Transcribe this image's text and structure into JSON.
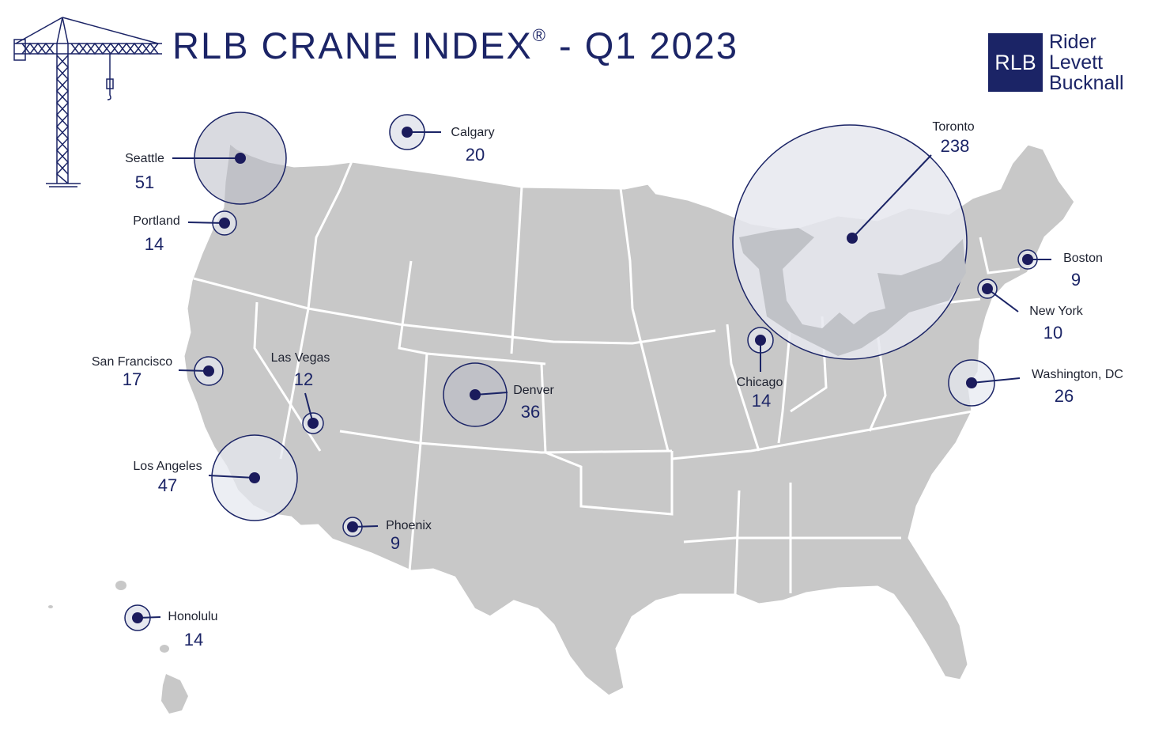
{
  "title": {
    "main": "RLB CRANE INDEX",
    "registered": "®",
    "suffix": " - Q1 2023"
  },
  "logo": {
    "initials": "RLB",
    "line1": "Rider",
    "line2": "Levett",
    "line3": "Bucknall"
  },
  "colors": {
    "navy": "#1b2466",
    "land": "#c8c8c8",
    "bubble_fill": "#e6e8ef",
    "border": "#ffffff"
  },
  "cities": [
    {
      "id": "seattle",
      "name": "Seattle",
      "count": "51"
    },
    {
      "id": "portland",
      "name": "Portland",
      "count": "14"
    },
    {
      "id": "calgary",
      "name": "Calgary",
      "count": "20"
    },
    {
      "id": "san-francisco",
      "name": "San Francisco",
      "count": "17"
    },
    {
      "id": "las-vegas",
      "name": "Las Vegas",
      "count": "12"
    },
    {
      "id": "los-angeles",
      "name": "Los Angeles",
      "count": "47"
    },
    {
      "id": "phoenix",
      "name": "Phoenix",
      "count": "9"
    },
    {
      "id": "honolulu",
      "name": "Honolulu",
      "count": "14"
    },
    {
      "id": "denver",
      "name": "Denver",
      "count": "36"
    },
    {
      "id": "chicago",
      "name": "Chicago",
      "count": "14"
    },
    {
      "id": "toronto",
      "name": "Toronto",
      "count": "238"
    },
    {
      "id": "boston",
      "name": "Boston",
      "count": "9"
    },
    {
      "id": "new-york",
      "name": "New York",
      "count": "10"
    },
    {
      "id": "washington-dc",
      "name": "Washington, DC",
      "count": "26"
    }
  ]
}
